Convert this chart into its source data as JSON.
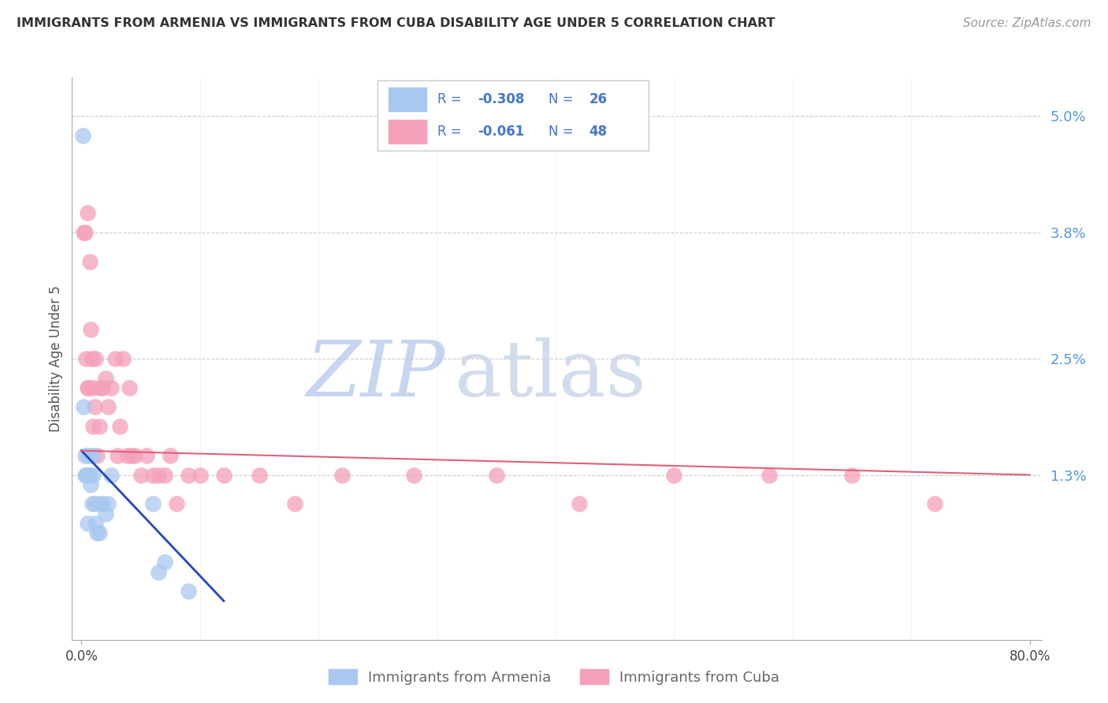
{
  "title": "IMMIGRANTS FROM ARMENIA VS IMMIGRANTS FROM CUBA DISABILITY AGE UNDER 5 CORRELATION CHART",
  "source": "Source: ZipAtlas.com",
  "ylabel": "Disability Age Under 5",
  "xlim": [
    0.0,
    0.8
  ],
  "ylim": [
    0.0,
    0.052
  ],
  "yticks": [
    0.013,
    0.025,
    0.038,
    0.05
  ],
  "ytick_labels": [
    "1.3%",
    "2.5%",
    "3.8%",
    "5.0%"
  ],
  "armenia_color": "#a8c8f0",
  "cuba_color": "#f4a0b8",
  "armenia_R": -0.308,
  "armenia_N": 26,
  "cuba_R": -0.061,
  "cuba_N": 48,
  "armenia_line_color": "#2244cc",
  "cuba_line_color": "#e0607a",
  "legend_label_armenia": "Immigrants from Armenia",
  "legend_label_cuba": "Immigrants from Cuba",
  "legend_text_color": "#4477cc",
  "watermark_zip_color": "#b8ccee",
  "watermark_atlas_color": "#c8d4e8",
  "armenia_x": [
    0.001,
    0.002,
    0.003,
    0.003,
    0.004,
    0.005,
    0.005,
    0.006,
    0.007,
    0.008,
    0.009,
    0.01,
    0.01,
    0.011,
    0.012,
    0.013,
    0.015,
    0.016,
    0.018,
    0.02,
    0.022,
    0.025,
    0.06,
    0.065,
    0.07,
    0.09
  ],
  "armenia_y": [
    0.048,
    0.02,
    0.015,
    0.013,
    0.013,
    0.013,
    0.008,
    0.015,
    0.013,
    0.012,
    0.01,
    0.015,
    0.013,
    0.01,
    0.008,
    0.007,
    0.007,
    0.01,
    0.01,
    0.009,
    0.01,
    0.013,
    0.01,
    0.003,
    0.004,
    0.001
  ],
  "cuba_x": [
    0.002,
    0.003,
    0.004,
    0.005,
    0.005,
    0.006,
    0.007,
    0.008,
    0.009,
    0.01,
    0.01,
    0.011,
    0.012,
    0.013,
    0.015,
    0.016,
    0.018,
    0.02,
    0.022,
    0.025,
    0.028,
    0.03,
    0.032,
    0.035,
    0.038,
    0.04,
    0.042,
    0.045,
    0.05,
    0.055,
    0.06,
    0.065,
    0.07,
    0.075,
    0.08,
    0.09,
    0.1,
    0.12,
    0.15,
    0.18,
    0.22,
    0.28,
    0.35,
    0.42,
    0.5,
    0.58,
    0.65,
    0.72
  ],
  "cuba_y": [
    0.038,
    0.038,
    0.025,
    0.04,
    0.022,
    0.022,
    0.035,
    0.028,
    0.025,
    0.018,
    0.022,
    0.02,
    0.025,
    0.015,
    0.018,
    0.022,
    0.022,
    0.023,
    0.02,
    0.022,
    0.025,
    0.015,
    0.018,
    0.025,
    0.015,
    0.022,
    0.015,
    0.015,
    0.013,
    0.015,
    0.013,
    0.013,
    0.013,
    0.015,
    0.01,
    0.013,
    0.013,
    0.013,
    0.013,
    0.01,
    0.013,
    0.013,
    0.013,
    0.01,
    0.013,
    0.013,
    0.013,
    0.01
  ],
  "cuba_line_x0": 0.0,
  "cuba_line_y0": 0.0155,
  "cuba_line_x1": 0.8,
  "cuba_line_y1": 0.013,
  "armenia_line_x0": 0.0,
  "armenia_line_y0": 0.0155,
  "armenia_line_x1": 0.12,
  "armenia_line_y1": 0.0
}
